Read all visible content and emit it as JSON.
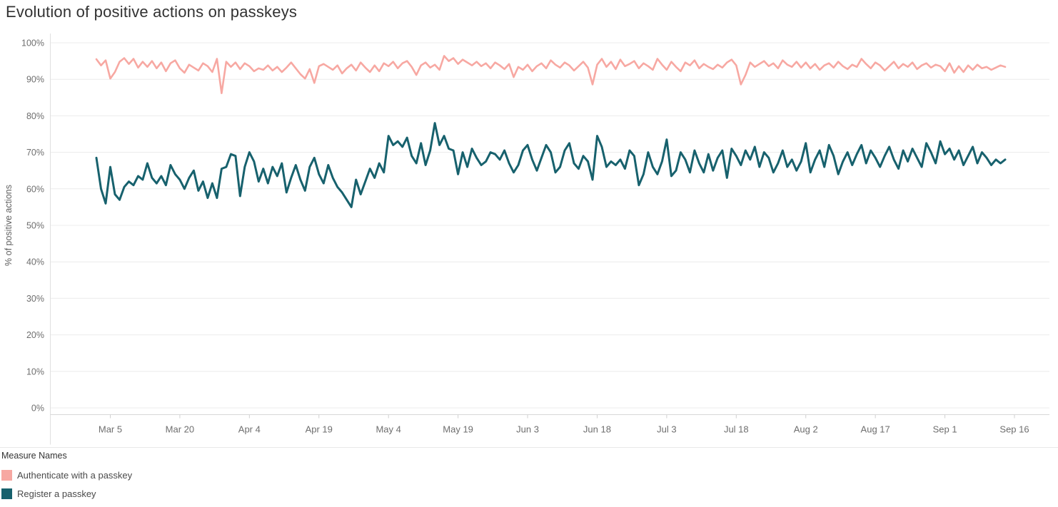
{
  "title": "Evolution of positive actions on passkeys",
  "legend": {
    "title": "Measure Names"
  },
  "chart_data": {
    "type": "line",
    "title": "Evolution of positive actions on passkeys",
    "xlabel": "",
    "ylabel": "% of positive actions",
    "ylim": [
      0,
      100
    ],
    "grid": "horizontal",
    "legend_position": "bottom-left",
    "y_tick_labels": [
      "0%",
      "10%",
      "20%",
      "30%",
      "40%",
      "50%",
      "60%",
      "70%",
      "80%",
      "90%",
      "100%"
    ],
    "x_unit": "day",
    "x_start_label": "Mar 2",
    "x_tick_labels": [
      "Mar 5",
      "Mar 20",
      "Apr 4",
      "Apr 19",
      "May 4",
      "May 19",
      "Jun 3",
      "Jun 18",
      "Jul 3",
      "Jul 18",
      "Aug 2",
      "Aug 17",
      "Sep 1",
      "Sep 16"
    ],
    "x_tick_positions": [
      3,
      18,
      33,
      48,
      63,
      78,
      93,
      108,
      123,
      138,
      153,
      168,
      183,
      198
    ],
    "series": [
      {
        "name": "Authenticate with a passkey",
        "color": "#f7a8a2",
        "values": [
          95.5,
          93.8,
          95.2,
          90.2,
          92.0,
          94.8,
          95.8,
          94.2,
          95.6,
          93.2,
          94.8,
          93.4,
          95.0,
          93.0,
          94.6,
          92.2,
          94.4,
          95.2,
          93.0,
          91.8,
          94.0,
          93.2,
          92.4,
          94.4,
          93.6,
          92.0,
          95.6,
          86.2,
          94.8,
          93.4,
          94.6,
          92.8,
          94.4,
          93.6,
          92.2,
          93.0,
          92.6,
          93.8,
          92.4,
          93.4,
          92.0,
          93.2,
          94.6,
          93.0,
          91.4,
          90.2,
          92.8,
          89.0,
          93.6,
          94.2,
          93.4,
          92.6,
          93.8,
          91.6,
          93.0,
          94.0,
          92.4,
          94.6,
          93.2,
          92.0,
          93.8,
          92.2,
          94.4,
          93.6,
          94.8,
          93.0,
          94.4,
          95.0,
          93.4,
          91.2,
          93.8,
          94.6,
          93.2,
          94.0,
          92.6,
          96.4,
          95.0,
          95.8,
          94.2,
          95.4,
          94.6,
          93.8,
          94.8,
          93.6,
          94.4,
          93.0,
          94.6,
          93.8,
          92.8,
          94.2,
          90.6,
          93.4,
          92.6,
          94.0,
          92.2,
          93.6,
          94.4,
          93.0,
          95.2,
          94.0,
          93.2,
          94.6,
          93.8,
          92.4,
          93.6,
          94.8,
          93.2,
          88.6,
          94.0,
          95.6,
          93.4,
          94.8,
          92.8,
          95.4,
          93.6,
          94.2,
          95.0,
          93.0,
          94.4,
          93.6,
          92.6,
          95.6,
          94.0,
          92.6,
          94.8,
          93.4,
          92.2,
          94.6,
          93.8,
          95.2,
          93.0,
          94.2,
          93.4,
          92.8,
          94.0,
          93.2,
          94.6,
          95.4,
          93.8,
          88.6,
          91.2,
          94.6,
          93.4,
          94.2,
          95.0,
          93.6,
          94.4,
          93.0,
          95.2,
          94.0,
          93.4,
          94.8,
          93.2,
          94.6,
          93.0,
          94.2,
          92.6,
          93.8,
          94.4,
          93.2,
          94.8,
          93.6,
          92.8,
          94.0,
          93.4,
          95.6,
          94.2,
          93.0,
          94.6,
          93.8,
          92.4,
          93.6,
          94.8,
          93.0,
          94.2,
          93.4,
          94.6,
          92.8,
          93.8,
          94.4,
          93.2,
          94.0,
          93.6,
          92.2,
          94.4,
          91.8,
          93.6,
          92.0,
          93.8,
          92.6,
          94.0,
          93.0,
          93.4,
          92.6,
          93.2,
          93.8,
          93.4
        ]
      },
      {
        "name": "Register a passkey",
        "color": "#17616d",
        "values": [
          68.5,
          60.0,
          56.0,
          66.0,
          58.5,
          57.0,
          60.5,
          62.0,
          61.0,
          63.5,
          62.5,
          67.0,
          63.0,
          61.5,
          63.5,
          61.0,
          66.5,
          64.0,
          62.5,
          60.0,
          63.0,
          65.0,
          59.5,
          62.0,
          57.5,
          61.5,
          57.5,
          65.5,
          66.0,
          69.5,
          69.0,
          58.0,
          66.0,
          70.0,
          67.5,
          62.0,
          65.5,
          61.5,
          66.0,
          63.5,
          67.0,
          59.0,
          63.0,
          66.5,
          62.5,
          59.5,
          66.0,
          68.5,
          64.0,
          61.5,
          66.5,
          63.0,
          60.5,
          59.0,
          57.0,
          55.0,
          62.5,
          58.5,
          62.0,
          65.5,
          63.0,
          67.0,
          64.5,
          74.5,
          72.0,
          73.0,
          71.5,
          74.0,
          69.0,
          67.0,
          72.5,
          66.5,
          70.5,
          78.0,
          72.0,
          74.5,
          71.0,
          70.5,
          64.0,
          70.0,
          66.0,
          71.0,
          68.5,
          66.5,
          67.5,
          70.0,
          69.5,
          68.0,
          70.5,
          67.0,
          64.5,
          66.5,
          70.5,
          72.0,
          68.0,
          65.0,
          68.5,
          72.0,
          70.0,
          64.5,
          66.0,
          70.5,
          72.5,
          67.0,
          65.5,
          69.0,
          67.5,
          62.5,
          74.5,
          71.5,
          66.0,
          67.5,
          66.5,
          68.0,
          65.5,
          70.5,
          69.0,
          61.0,
          64.0,
          70.0,
          66.0,
          64.0,
          67.5,
          73.5,
          63.5,
          65.0,
          70.0,
          68.0,
          64.5,
          70.5,
          67.0,
          64.5,
          69.5,
          65.0,
          68.5,
          70.5,
          63.0,
          71.0,
          69.0,
          66.5,
          70.5,
          68.0,
          71.5,
          66.0,
          70.0,
          68.5,
          64.5,
          67.0,
          70.5,
          66.0,
          68.0,
          65.0,
          67.5,
          72.5,
          64.5,
          68.0,
          70.5,
          66.0,
          72.0,
          69.0,
          64.0,
          67.5,
          70.0,
          66.5,
          69.5,
          72.0,
          67.0,
          70.5,
          68.5,
          66.0,
          69.0,
          71.5,
          68.0,
          65.5,
          70.5,
          67.5,
          71.0,
          68.5,
          66.0,
          72.5,
          70.0,
          67.0,
          73.0,
          69.5,
          71.0,
          68.0,
          70.5,
          66.5,
          69.0,
          71.5,
          67.0,
          70.0,
          68.5,
          66.5,
          68.0,
          67.0,
          68.0
        ]
      }
    ]
  }
}
